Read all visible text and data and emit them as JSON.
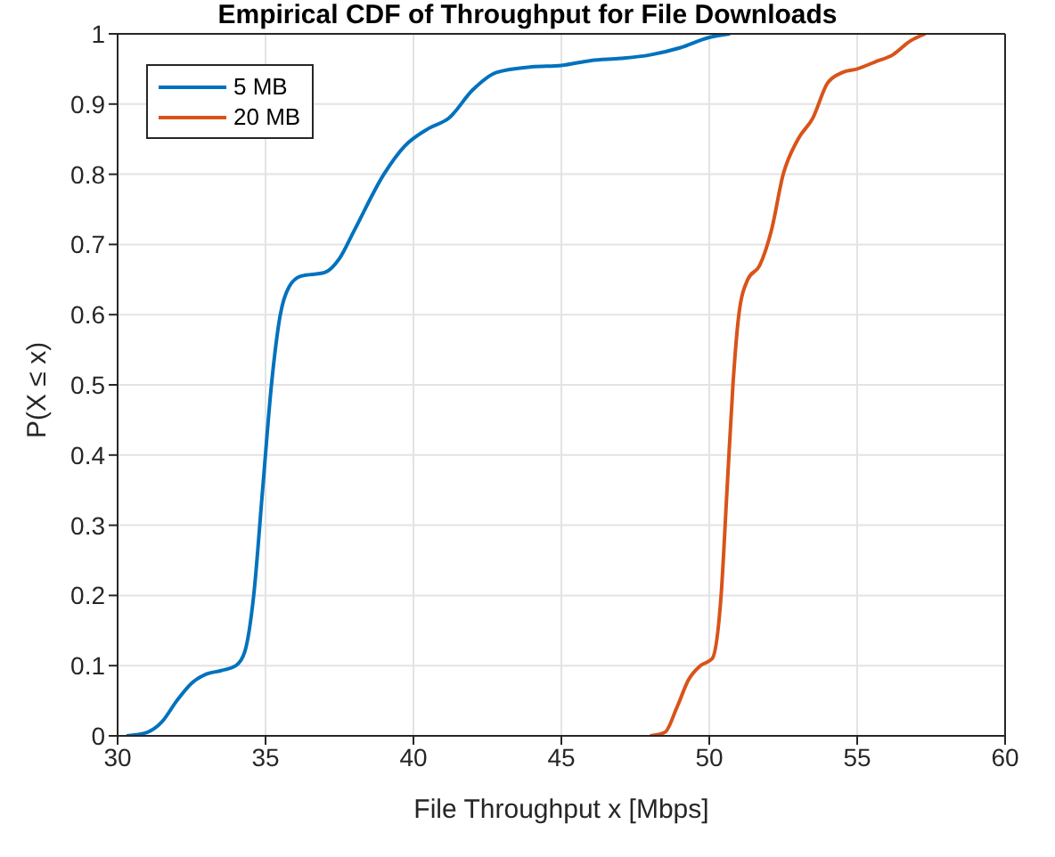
{
  "chart_data": {
    "type": "line",
    "title": "Empirical CDF of Throughput for File Downloads",
    "xlabel": "File Throughput x [Mbps]",
    "ylabel": "P(X ≤ x)",
    "xlim": [
      30,
      60
    ],
    "xticks": [
      30,
      35,
      40,
      45,
      50,
      55,
      60
    ],
    "ylim": [
      0,
      1
    ],
    "yticks": [
      0,
      0.1,
      0.2,
      0.3,
      0.4,
      0.5,
      0.6,
      0.7,
      0.8,
      0.9,
      1
    ],
    "grid": true,
    "legend": "top left",
    "marker": "none",
    "line_style": "solid",
    "series": [
      {
        "name": "5 MB",
        "color": "#0072bd",
        "x": [
          30.3,
          31,
          31.5,
          32,
          32.5,
          33,
          33.5,
          34,
          34.3,
          34.6,
          34.9,
          35.2,
          35.5,
          35.8,
          36.2,
          37,
          37.5,
          38,
          39,
          39.7,
          40.5,
          41.2,
          42,
          42.8,
          44,
          45,
          46,
          47,
          48,
          49,
          50,
          50.7
        ],
        "values": [
          0,
          0.005,
          0.02,
          0.05,
          0.075,
          0.088,
          0.093,
          0.1,
          0.12,
          0.2,
          0.35,
          0.5,
          0.6,
          0.64,
          0.655,
          0.66,
          0.68,
          0.72,
          0.8,
          0.84,
          0.865,
          0.88,
          0.92,
          0.945,
          0.953,
          0.955,
          0.962,
          0.965,
          0.97,
          0.98,
          0.995,
          1
        ]
      },
      {
        "name": "20 MB",
        "color": "#d95319",
        "x": [
          48,
          48.5,
          48.9,
          49.3,
          49.7,
          50.1,
          50.4,
          50.6,
          50.8,
          51,
          51.3,
          51.7,
          52.1,
          52.5,
          53,
          53.5,
          54,
          54.5,
          55,
          55.6,
          56.2,
          56.8,
          57.3
        ],
        "values": [
          0,
          0.005,
          0.04,
          0.08,
          0.1,
          0.11,
          0.2,
          0.35,
          0.5,
          0.6,
          0.65,
          0.67,
          0.72,
          0.8,
          0.85,
          0.88,
          0.93,
          0.945,
          0.95,
          0.96,
          0.97,
          0.99,
          1
        ]
      }
    ]
  }
}
